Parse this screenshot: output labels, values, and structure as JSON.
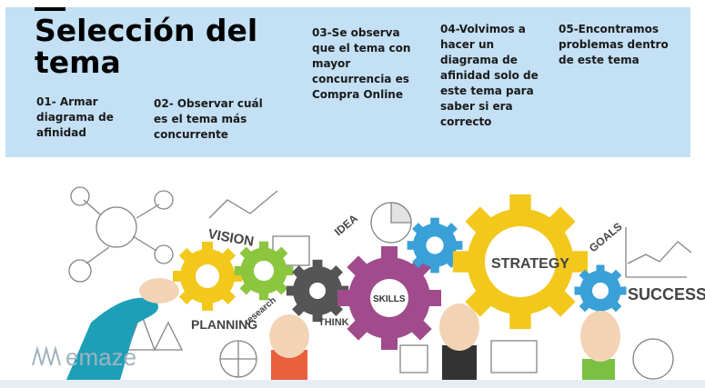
{
  "header": {
    "title_line1": "Selección del",
    "title_line2": "tema"
  },
  "steps": [
    {
      "text": "01-  Armar diagrama de afinidad"
    },
    {
      "text": "02- Observar cuál es el tema más concurrente"
    },
    {
      "text": "03-Se observa que el tema con mayor concurrencia es Compra Online"
    },
    {
      "text": "04-Volvimos a hacer un diagrama de afinidad solo de este tema para saber si era correcto"
    },
    {
      "text": "05-Encontramos problemas dentro de este tema"
    }
  ],
  "illustration": {
    "labels": {
      "vision": "VISION",
      "strategy": "STRATEGY",
      "skills": "SKILLS",
      "success": "SUCCESS",
      "planning": "PLANNING",
      "research": "research",
      "think": "THINK",
      "idea": "IDEA",
      "goals": "GOALS"
    },
    "brand": "emaze"
  },
  "colors": {
    "band": "#c3e0f4",
    "gear_yellow": "#f2c81d",
    "gear_green": "#8cc63f",
    "gear_purple": "#a04b8c",
    "gear_blue": "#3aa0d8",
    "gear_dark": "#444444",
    "hand_teal": "#1d9fb8",
    "sleeve_orange": "#e8603c",
    "sleeve_green": "#7ac143"
  }
}
